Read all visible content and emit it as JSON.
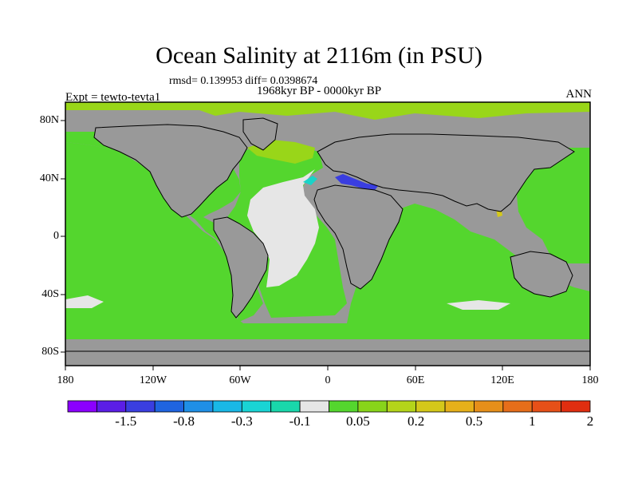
{
  "title": "Ocean Salinity at 2116m (in PSU)",
  "stats_label": "rmsd= 0.139953  diff= 0.0398674",
  "period_label": "1968kyr BP - 0000kyr BP",
  "experiment_label": "Expt = tewto-tevta1",
  "season_label": "ANN",
  "lat_labels": [
    "80N",
    "40N",
    "0",
    "40S",
    "80S"
  ],
  "lon_labels": [
    "180",
    "120W",
    "60W",
    "0",
    "60E",
    "120E",
    "180"
  ],
  "colorbar": {
    "colors": [
      "#8b00ff",
      "#5b1ee6",
      "#3a3ee0",
      "#1f64e0",
      "#1f8fe6",
      "#19b8e6",
      "#19d4d4",
      "#19d7ab",
      "#e6e6e6",
      "#54d62e",
      "#88d41a",
      "#b4d41a",
      "#d4c81a",
      "#e6b01a",
      "#e68f1a",
      "#e66e1a",
      "#e65018",
      "#e02e10"
    ],
    "labels": [
      "-1.5",
      "-0.8",
      "-0.3",
      "-0.1",
      "0.05",
      "0.2",
      "0.5",
      "1",
      "2"
    ]
  },
  "legend_colors": {
    "land": "#999999",
    "ocean_main": "#54d62e",
    "neutral": "#e6e6e6",
    "arctic": "#99d619",
    "med": "#3a3ee0",
    "cyan": "#19d4c8"
  }
}
